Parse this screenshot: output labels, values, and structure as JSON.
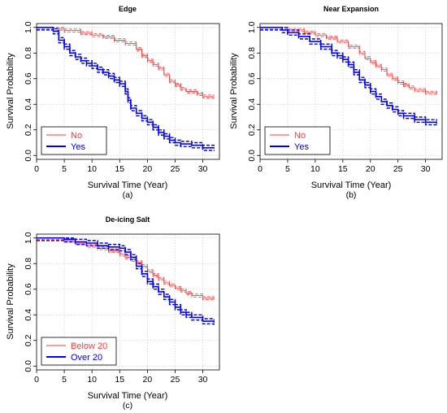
{
  "chart_data": [
    {
      "type": "line",
      "title": "Edge",
      "xlabel": "Survival Time (Year)",
      "ylabel": "Survival Probability",
      "caption": "(a)",
      "xlim": [
        0,
        33
      ],
      "ylim": [
        -0.03,
        1.03
      ],
      "xticks": [
        0,
        5,
        10,
        15,
        20,
        25,
        30
      ],
      "yticks": [
        0.0,
        0.2,
        0.4,
        0.6,
        0.8,
        1.0
      ],
      "grid": true,
      "legend_position": "bottom-left",
      "series": [
        {
          "name": "No",
          "color": "#ff3b3b",
          "points": [
            [
              0,
              1.0
            ],
            [
              2,
              1.0
            ],
            [
              3,
              0.99
            ],
            [
              5,
              0.975
            ],
            [
              8,
              0.955
            ],
            [
              10,
              0.94
            ],
            [
              12,
              0.925
            ],
            [
              14,
              0.9
            ],
            [
              16,
              0.875
            ],
            [
              18,
              0.83
            ],
            [
              19,
              0.78
            ],
            [
              20,
              0.74
            ],
            [
              21,
              0.71
            ],
            [
              22,
              0.68
            ],
            [
              23,
              0.63
            ],
            [
              24,
              0.58
            ],
            [
              25,
              0.55
            ],
            [
              26,
              0.52
            ],
            [
              27,
              0.5
            ],
            [
              29,
              0.48
            ],
            [
              30,
              0.46
            ],
            [
              32,
              0.455
            ]
          ]
        },
        {
          "name": "Yes",
          "color": "#0000ff",
          "points": [
            [
              0,
              1.0
            ],
            [
              2,
              1.0
            ],
            [
              3,
              0.97
            ],
            [
              4,
              0.9
            ],
            [
              5,
              0.85
            ],
            [
              6,
              0.8
            ],
            [
              7,
              0.77
            ],
            [
              8,
              0.74
            ],
            [
              9,
              0.72
            ],
            [
              10,
              0.7
            ],
            [
              11,
              0.67
            ],
            [
              12,
              0.65
            ],
            [
              13,
              0.62
            ],
            [
              14,
              0.59
            ],
            [
              15,
              0.56
            ],
            [
              16,
              0.5
            ],
            [
              16.5,
              0.43
            ],
            [
              17,
              0.37
            ],
            [
              18,
              0.33
            ],
            [
              19,
              0.29
            ],
            [
              20,
              0.26
            ],
            [
              21,
              0.22
            ],
            [
              22,
              0.18
            ],
            [
              23,
              0.15
            ],
            [
              24,
              0.12
            ],
            [
              25,
              0.1
            ],
            [
              26,
              0.09
            ],
            [
              28,
              0.08
            ],
            [
              30,
              0.06
            ],
            [
              32,
              0.055
            ]
          ]
        }
      ]
    },
    {
      "type": "line",
      "title": "Near Expansion",
      "xlabel": "Survival Time (Year)",
      "ylabel": "Survival Probability",
      "caption": "(b)",
      "xlim": [
        0,
        33
      ],
      "ylim": [
        -0.03,
        1.03
      ],
      "xticks": [
        0,
        5,
        10,
        15,
        20,
        25,
        30
      ],
      "yticks": [
        0.0,
        0.2,
        0.4,
        0.6,
        0.8,
        1.0
      ],
      "grid": true,
      "legend_position": "bottom-left",
      "series": [
        {
          "name": "No",
          "color": "#ff3b3b",
          "points": [
            [
              0,
              1.0
            ],
            [
              3,
              1.0
            ],
            [
              5,
              0.98
            ],
            [
              8,
              0.96
            ],
            [
              10,
              0.94
            ],
            [
              12,
              0.92
            ],
            [
              14,
              0.89
            ],
            [
              16,
              0.85
            ],
            [
              18,
              0.8
            ],
            [
              19,
              0.76
            ],
            [
              20,
              0.73
            ],
            [
              21,
              0.7
            ],
            [
              22,
              0.67
            ],
            [
              23,
              0.63
            ],
            [
              24,
              0.6
            ],
            [
              25,
              0.57
            ],
            [
              26,
              0.55
            ],
            [
              27,
              0.53
            ],
            [
              28,
              0.51
            ],
            [
              30,
              0.49
            ],
            [
              32,
              0.48
            ]
          ]
        },
        {
          "name": "Yes",
          "color": "#0000ff",
          "points": [
            [
              0,
              1.0
            ],
            [
              3,
              1.0
            ],
            [
              4,
              0.98
            ],
            [
              5,
              0.96
            ],
            [
              7,
              0.93
            ],
            [
              9,
              0.89
            ],
            [
              11,
              0.85
            ],
            [
              13,
              0.8
            ],
            [
              14,
              0.78
            ],
            [
              15,
              0.75
            ],
            [
              16,
              0.71
            ],
            [
              17,
              0.65
            ],
            [
              18,
              0.59
            ],
            [
              19,
              0.55
            ],
            [
              20,
              0.5
            ],
            [
              21,
              0.46
            ],
            [
              22,
              0.42
            ],
            [
              23,
              0.39
            ],
            [
              24,
              0.36
            ],
            [
              25,
              0.33
            ],
            [
              26,
              0.31
            ],
            [
              28,
              0.28
            ],
            [
              30,
              0.26
            ],
            [
              32,
              0.25
            ]
          ]
        }
      ]
    },
    {
      "type": "line",
      "title": "De-icing Salt",
      "xlabel": "Survival Time (Year)",
      "ylabel": "Survival Probability",
      "caption": "(c)",
      "xlim": [
        0,
        33
      ],
      "ylim": [
        -0.03,
        1.03
      ],
      "xticks": [
        0,
        5,
        10,
        15,
        20,
        25,
        30
      ],
      "yticks": [
        0.0,
        0.2,
        0.4,
        0.6,
        0.8,
        1.0
      ],
      "grid": true,
      "legend_position": "bottom-left",
      "series": [
        {
          "name": "Below 20",
          "color": "#ff3b3b",
          "points": [
            [
              0,
              1.0
            ],
            [
              3,
              1.0
            ],
            [
              5,
              0.98
            ],
            [
              7,
              0.96
            ],
            [
              9,
              0.94
            ],
            [
              11,
              0.92
            ],
            [
              13,
              0.9
            ],
            [
              15,
              0.87
            ],
            [
              16,
              0.85
            ],
            [
              17,
              0.83
            ],
            [
              18,
              0.81
            ],
            [
              19,
              0.78
            ],
            [
              20,
              0.74
            ],
            [
              21,
              0.71
            ],
            [
              22,
              0.68
            ],
            [
              23,
              0.65
            ],
            [
              24,
              0.63
            ],
            [
              25,
              0.61
            ],
            [
              26,
              0.59
            ],
            [
              27,
              0.57
            ],
            [
              28,
              0.55
            ],
            [
              30,
              0.53
            ],
            [
              32,
              0.52
            ]
          ]
        },
        {
          "name": "Over 20",
          "color": "#0000ff",
          "points": [
            [
              0,
              1.0
            ],
            [
              3,
              1.0
            ],
            [
              5,
              0.99
            ],
            [
              7,
              0.97
            ],
            [
              9,
              0.96
            ],
            [
              11,
              0.94
            ],
            [
              13,
              0.93
            ],
            [
              15,
              0.92
            ],
            [
              16,
              0.89
            ],
            [
              17,
              0.85
            ],
            [
              18,
              0.78
            ],
            [
              19,
              0.72
            ],
            [
              20,
              0.66
            ],
            [
              21,
              0.62
            ],
            [
              22,
              0.58
            ],
            [
              23,
              0.54
            ],
            [
              24,
              0.5
            ],
            [
              25,
              0.46
            ],
            [
              26,
              0.42
            ],
            [
              27,
              0.4
            ],
            [
              28,
              0.38
            ],
            [
              30,
              0.35
            ],
            [
              32,
              0.34
            ]
          ]
        }
      ]
    }
  ]
}
